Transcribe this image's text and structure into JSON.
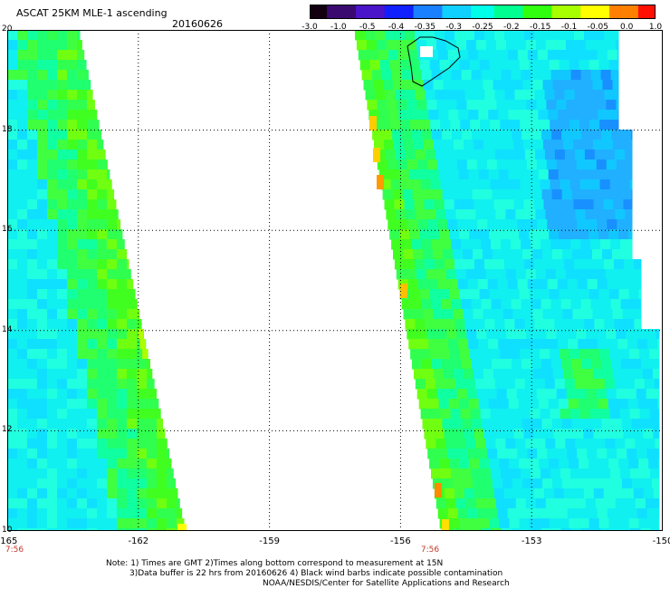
{
  "header": {
    "title": "ASCAT 25KM MLE-1 ascending",
    "date": "20160626"
  },
  "colorbar": {
    "labels": [
      "-3.0",
      "-1.0",
      "-0.5",
      "-0.4",
      "-0.35",
      "-0.3",
      "-0.25",
      "-0.2",
      "-0.15",
      "-0.1",
      "-0.05",
      "0.0",
      "1.0"
    ],
    "colors": [
      "#120010",
      "#3a0a70",
      "#4a14c8",
      "#1020ff",
      "#1a80ff",
      "#10d0ff",
      "#00ffe8",
      "#00ff90",
      "#30ff10",
      "#a8ff00",
      "#ffff00",
      "#ff8000",
      "#ff1000"
    ]
  },
  "axes": {
    "x_ticks": [
      "-165",
      "-162",
      "-159",
      "-156",
      "-153",
      "-150"
    ],
    "y_ticks": [
      "20",
      "18",
      "16",
      "14",
      "12",
      "10"
    ],
    "lon_range": [
      -165,
      -150
    ],
    "lat_range": [
      10,
      20
    ]
  },
  "swath_times": [
    "7:56",
    "7:56"
  ],
  "notes": {
    "line1": "Note: 1) Times are GMT 2)Times along bottom correspond to measurement at 15N",
    "line2": "3)Data buffer is 22 hrs from 20160626 4) Black wind barbs indicate possible contamination",
    "line3": "NOAA/NESDIS/Center for Satellite Applications and Research"
  }
}
